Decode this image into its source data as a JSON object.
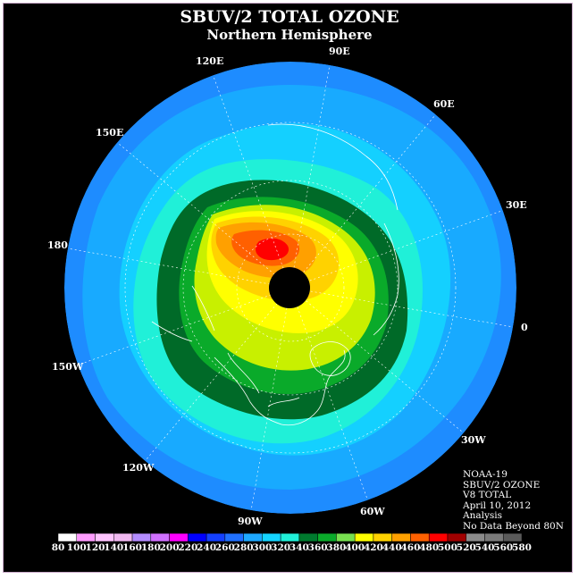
{
  "title": "SBUV/2 TOTAL OZONE",
  "subtitle": "Northern Hemisphere",
  "longitude_labels": [
    "90E",
    "60E",
    "30E",
    "0",
    "30W",
    "60W",
    "90W",
    "120W",
    "150W",
    "180",
    "150E",
    "120E"
  ],
  "info": {
    "satellite": "NOAA-19",
    "product": "SBUV/2 OZONE",
    "version": "V8 TOTAL",
    "date": "April 10, 2012",
    "type": "Analysis",
    "note": "No Data Beyond 80N"
  },
  "color_scale": {
    "ticks": [
      "80",
      "100",
      "120",
      "140",
      "160",
      "180",
      "200",
      "220",
      "240",
      "260",
      "280",
      "300",
      "320",
      "340",
      "360",
      "380",
      "400",
      "420",
      "440",
      "460",
      "480",
      "500",
      "520",
      "540",
      "560",
      "580"
    ],
    "colors": [
      "#ffffff",
      "#ff9cff",
      "#ffc4ff",
      "#f0b8f0",
      "#b48cff",
      "#d070ff",
      "#ff00ff",
      "#0000ff",
      "#1440ff",
      "#2070ff",
      "#1ea8ff",
      "#14d4ff",
      "#20f0d8",
      "#007a2e",
      "#0aaa2a",
      "#78e050",
      "#ffff00",
      "#ffd200",
      "#ffa000",
      "#ff6000",
      "#ff0000",
      "#a00000",
      "#8a8a8a",
      "#7a7a7a",
      "#5a5a5a"
    ]
  },
  "ozone_zone_colors": [
    "#1e8cff",
    "#18aaff",
    "#14d0ff",
    "#20f0d8",
    "#0aaa2a",
    "#006a28",
    "#c8f000",
    "#ffff00",
    "#ffd200",
    "#ffa000",
    "#ff6000",
    "#ff0000"
  ]
}
